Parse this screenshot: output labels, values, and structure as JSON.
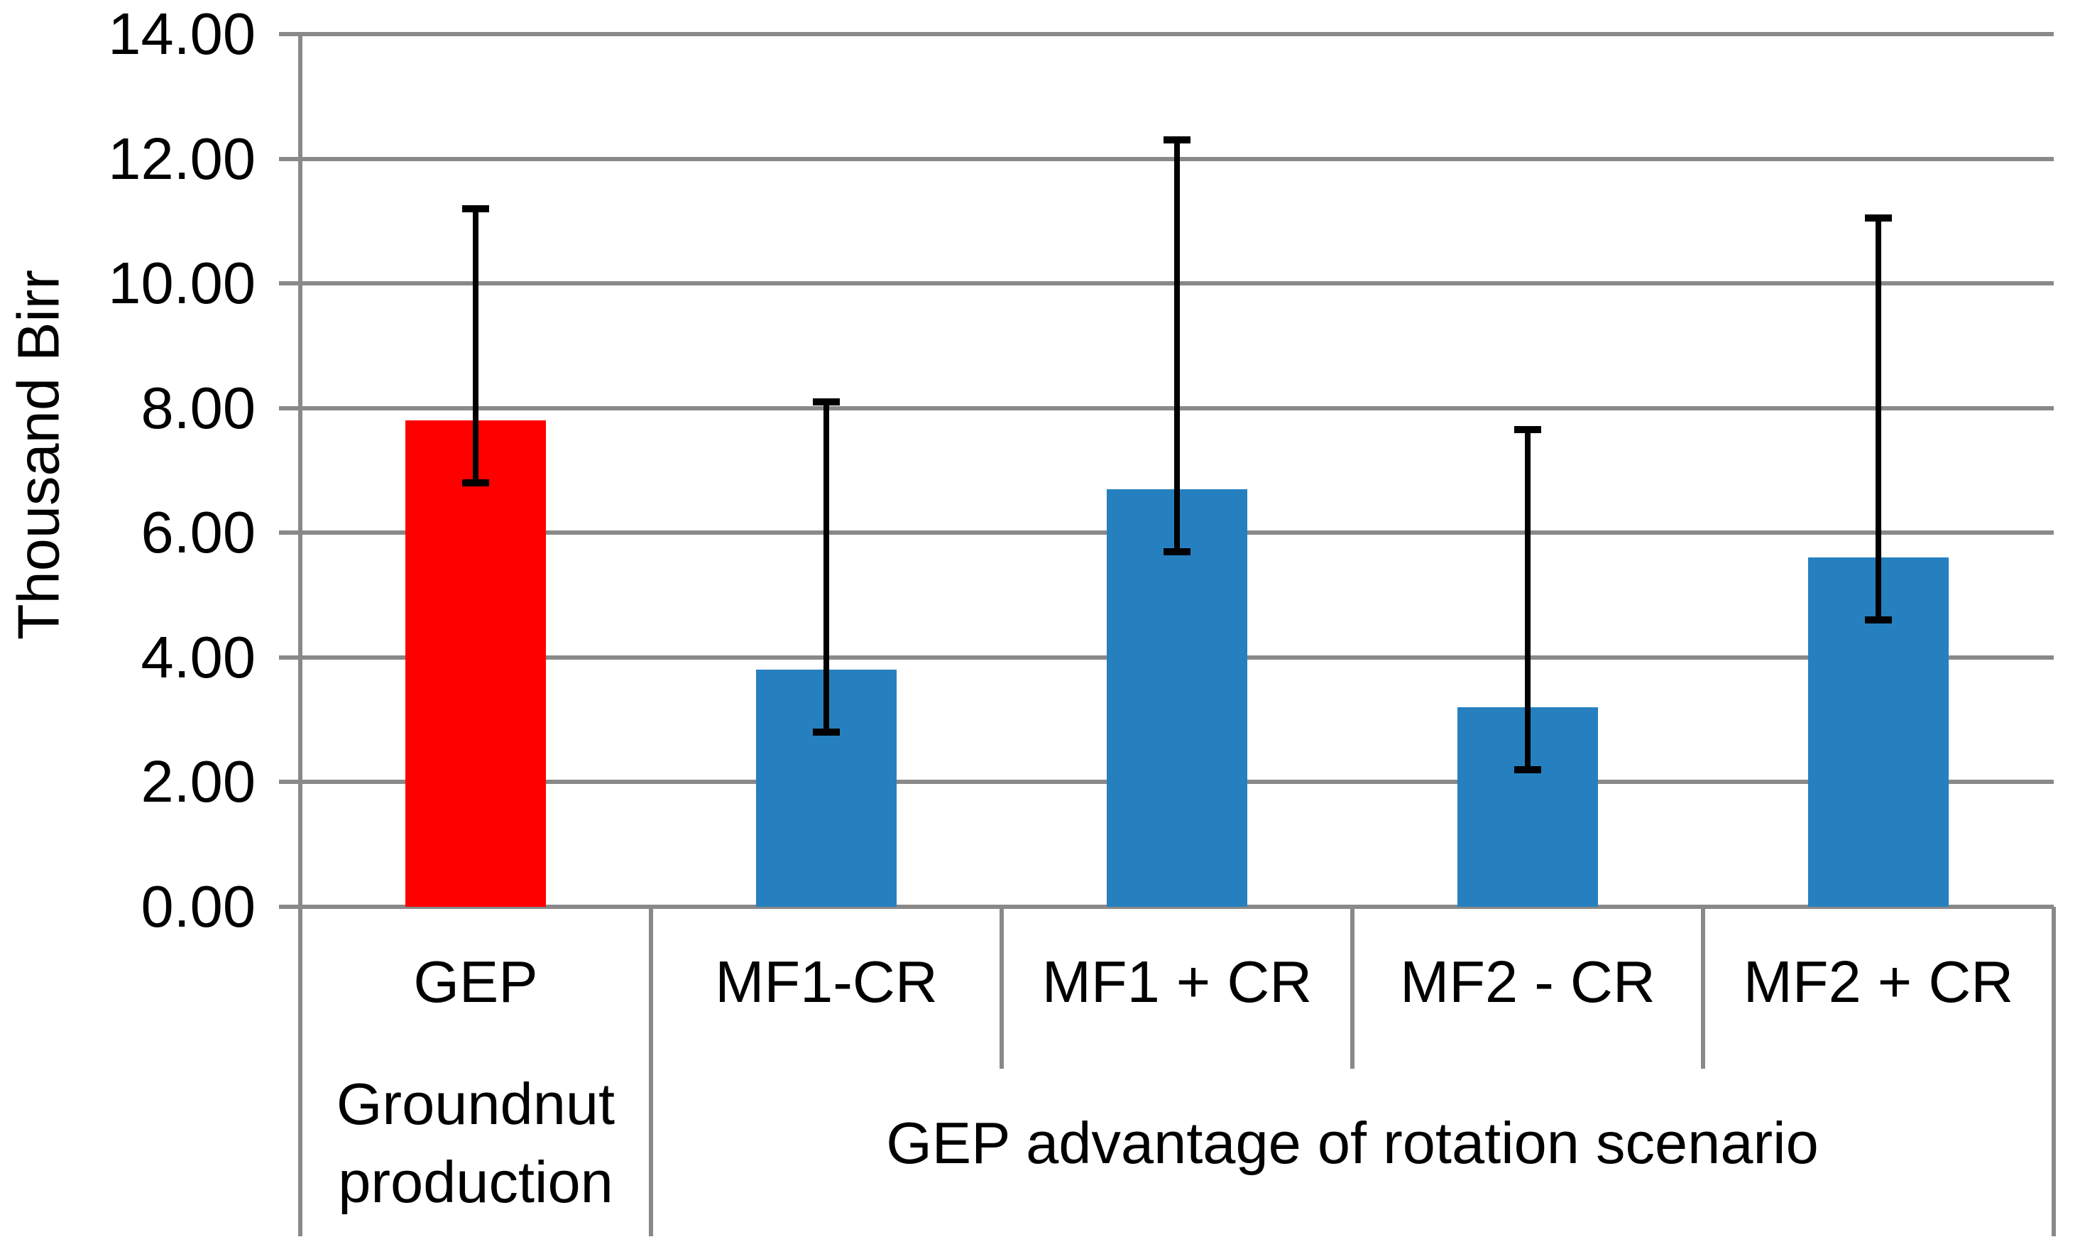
{
  "chart_data": {
    "type": "bar",
    "title": "",
    "ylabel": "Thousand Birr",
    "xlabel": "",
    "ylim": [
      0,
      14
    ],
    "ytick_step": 2,
    "yticks": [
      0,
      2,
      4,
      6,
      8,
      10,
      12,
      14
    ],
    "ytick_labels": [
      "0.00",
      "2.00",
      "4.00",
      "6.00",
      "8.00",
      "10.00",
      "12.00",
      "14.00"
    ],
    "grid": true,
    "legend": "none",
    "categories": [
      "GEP",
      "MF1-CR",
      "MF1 + CR",
      "MF2 - CR",
      "MF2 + CR"
    ],
    "values": [
      7.8,
      3.8,
      6.7,
      3.2,
      5.6
    ],
    "error_bars": {
      "low": [
        6.8,
        2.8,
        5.7,
        2.2,
        4.6
      ],
      "high": [
        11.2,
        8.1,
        12.3,
        7.65,
        11.05
      ]
    },
    "bar_colors": [
      "#FF0000",
      "#2680BF",
      "#2680BF",
      "#2680BF",
      "#2680BF"
    ],
    "group_labels": [
      {
        "label": "Groundnut production",
        "start": 0,
        "end": 0
      },
      {
        "label": "GEP advantage of rotation scenario",
        "start": 1,
        "end": 4
      }
    ],
    "colors": {
      "highlight_bar": "#FF0000",
      "scenario_bar": "#2680BF",
      "gridline": "#898989",
      "error_bar": "#000000",
      "text": "#000000",
      "background": "#FFFFFF"
    }
  }
}
